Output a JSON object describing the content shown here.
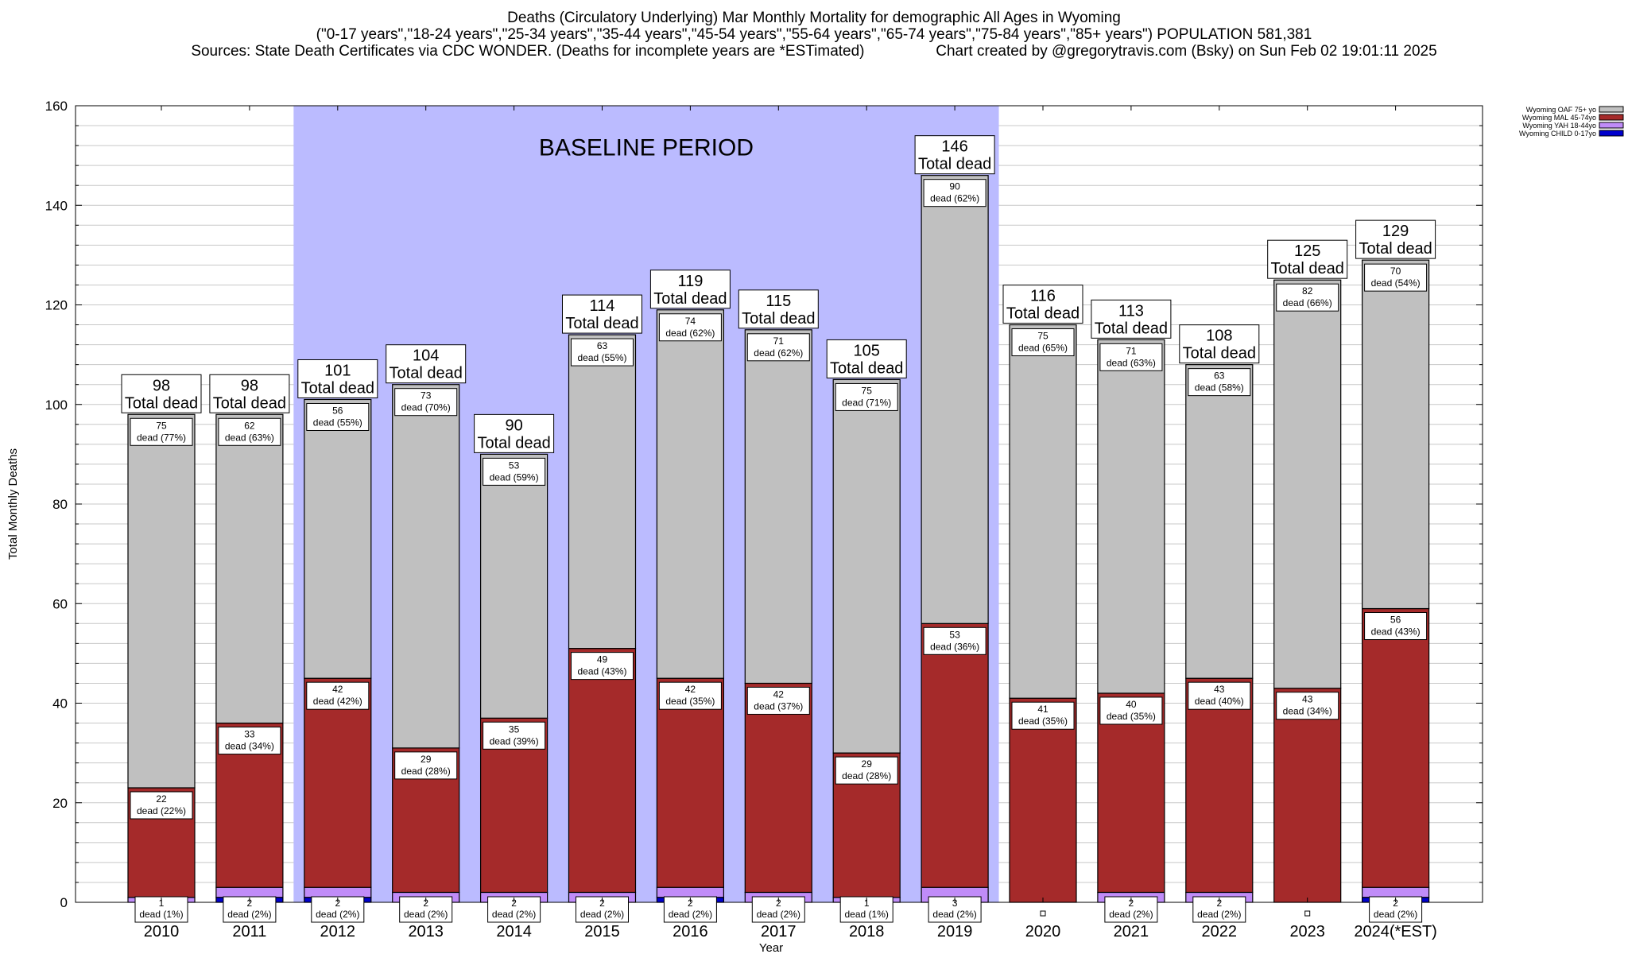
{
  "header": {
    "title_line1": "Deaths (Circulatory Underlying) Mar Monthly Mortality for demographic All Ages in Wyoming",
    "title_line2": "(\"0-17 years\",\"18-24 years\",\"25-34 years\",\"35-44 years\",\"45-54 years\",\"55-64 years\",\"65-74 years\",\"75-84 years\",\"85+ years\") POPULATION 581,381",
    "title_line3": "Sources: State Death Certificates via CDC WONDER. (Deaths for incomplete years are *ESTimated)                 Chart created by @gregorytravis.com (Bsky) on Sun Feb 02 19:01:11 2025"
  },
  "colors": {
    "oaf": "#c0c0c0",
    "mal": "#a52a2a",
    "yah": "#c08cf8",
    "child": "#0000cd",
    "baseline": "#bbbbff",
    "grid": "#c8c8c8"
  },
  "chart_data": {
    "type": "bar",
    "stacked": true,
    "title": "Deaths (Circulatory Underlying) Mar Monthly Mortality for demographic All Ages in Wyoming",
    "xlabel": "Year",
    "ylabel": "Total Monthly Deaths",
    "ylim": [
      0,
      160
    ],
    "yticks": [
      0,
      20,
      40,
      60,
      80,
      100,
      120,
      140,
      160
    ],
    "categories": [
      "2010",
      "2011",
      "2012",
      "2013",
      "2014",
      "2015",
      "2016",
      "2017",
      "2018",
      "2019",
      "2020",
      "2021",
      "2022",
      "2023",
      "2024(*EST)"
    ],
    "legend_position": "top-right",
    "legend": [
      "Wyoming OAF 75+ yo",
      "Wyoming MAL 45-74yo",
      "Wyoming YAH 18-44yo",
      "Wyoming CHILD 0-17yo"
    ],
    "series": [
      {
        "name": "Wyoming CHILD 0-17yo",
        "key": "child",
        "values": [
          0,
          1,
          1,
          0,
          0,
          0,
          1,
          0,
          0,
          0,
          0,
          0,
          0,
          0,
          1
        ]
      },
      {
        "name": "Wyoming YAH 18-44yo",
        "key": "yah",
        "values": [
          1,
          2,
          2,
          2,
          2,
          2,
          2,
          2,
          1,
          3,
          0,
          2,
          2,
          0,
          2
        ]
      },
      {
        "name": "Wyoming MAL 45-74yo",
        "key": "mal",
        "values": [
          22,
          33,
          42,
          29,
          35,
          49,
          42,
          42,
          29,
          53,
          41,
          40,
          43,
          43,
          56
        ]
      },
      {
        "name": "Wyoming OAF 75+ yo",
        "key": "oaf",
        "values": [
          75,
          62,
          56,
          73,
          53,
          63,
          74,
          71,
          75,
          90,
          75,
          71,
          63,
          82,
          70
        ]
      }
    ],
    "totals": [
      98,
      98,
      101,
      104,
      90,
      114,
      119,
      115,
      105,
      146,
      116,
      113,
      108,
      125,
      129
    ],
    "label_lines": {
      "oaf": [
        "75|dead (77%)",
        "62|dead (63%)",
        "56|dead (55%)",
        "73|dead (70%)",
        "53|dead (59%)",
        "63|dead (55%)",
        "74|dead (62%)",
        "71|dead (62%)",
        "75|dead (71%)",
        "90|dead (62%)",
        "75|dead (65%)",
        "71|dead (63%)",
        "63|dead (58%)",
        "82|dead (66%)",
        "70|dead (54%)"
      ],
      "mal": [
        "22|dead (22%)",
        "33|dead (34%)",
        "42|dead (42%)",
        "29|dead (28%)",
        "35|dead (39%)",
        "49|dead (43%)",
        "42|dead (35%)",
        "42|dead (37%)",
        "29|dead (28%)",
        "53|dead (36%)",
        "41|dead (35%)",
        "40|dead (35%)",
        "43|dead (40%)",
        "43|dead (34%)",
        "56|dead (43%)"
      ],
      "yah": [
        "1|dead (1%)",
        "2|dead (2%)",
        "2|dead (2%)",
        "2|dead (2%)",
        "2|dead (2%)",
        "2|dead (2%)",
        "2|dead (2%)",
        "2|dead (2%)",
        "1|dead (1%)",
        "3|dead (2%)",
        "",
        "2|dead (2%)",
        "2|dead (2%)",
        "",
        "2|dead (2%)"
      ]
    },
    "total_label": "Total dead",
    "baseline": {
      "label": "BASELINE PERIOD",
      "from": "2012",
      "to": "2019"
    }
  }
}
